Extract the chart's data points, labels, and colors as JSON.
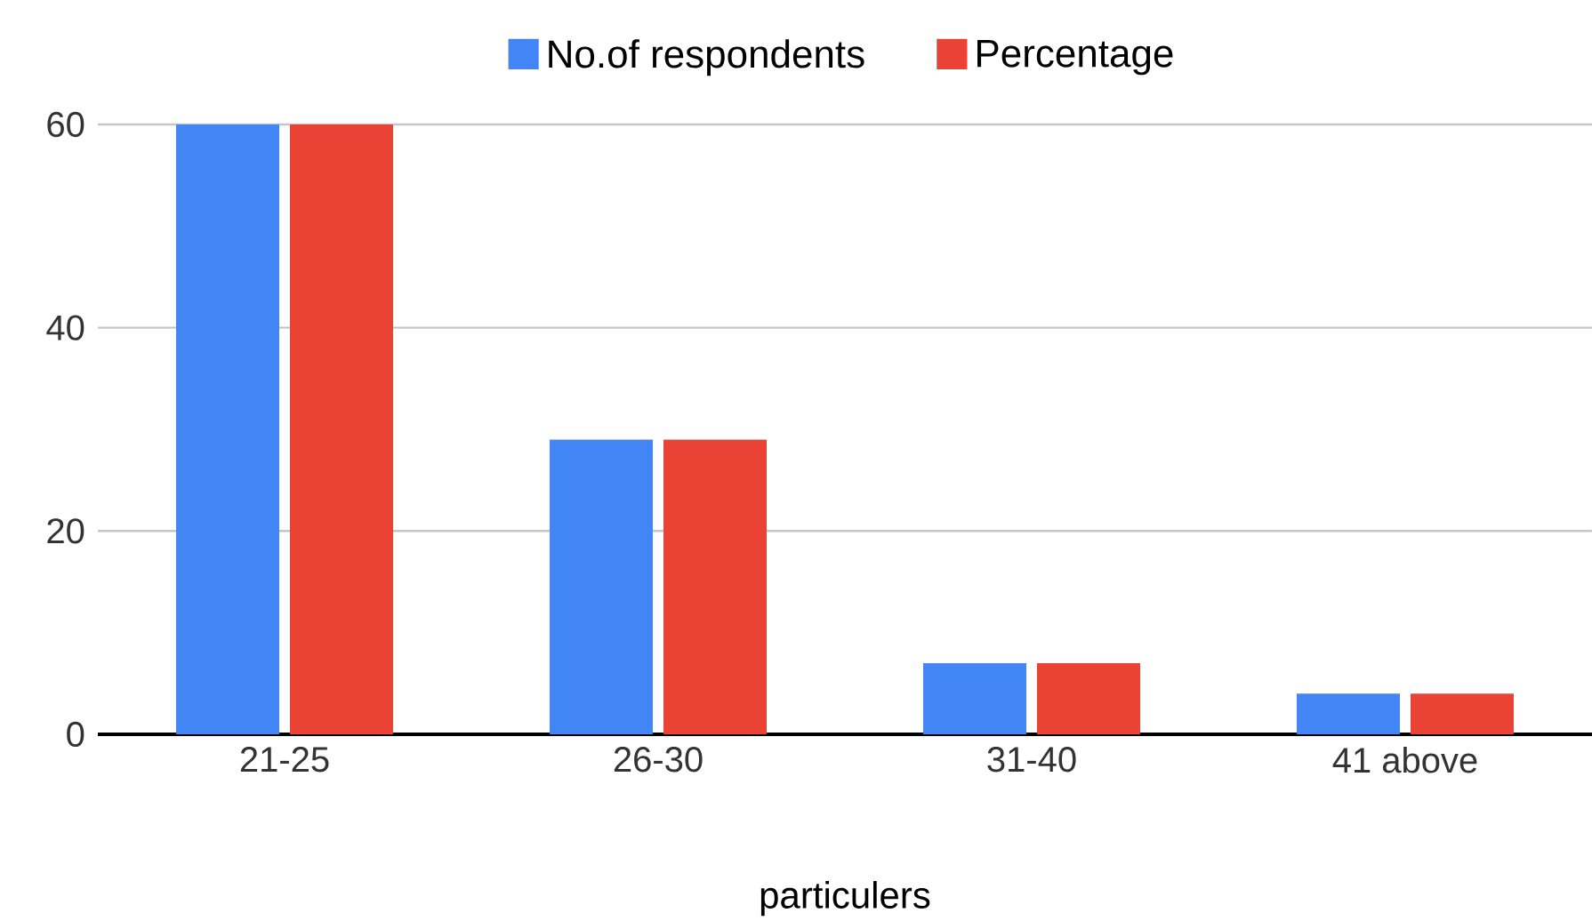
{
  "chart_data": {
    "type": "bar",
    "xlabel": "particulers",
    "categories": [
      "21-25",
      "26-30",
      "31-40",
      "41 above"
    ],
    "series": [
      {
        "name": "No.of respondents",
        "color": "#4285f4",
        "values": [
          60,
          29,
          7,
          4
        ]
      },
      {
        "name": "Percentage",
        "color": "#ea4335",
        "values": [
          60,
          29,
          7,
          4
        ]
      }
    ],
    "ylim": [
      0,
      60
    ],
    "yticks": [
      0,
      20,
      40,
      60
    ],
    "grid": "y",
    "legend": "top"
  }
}
